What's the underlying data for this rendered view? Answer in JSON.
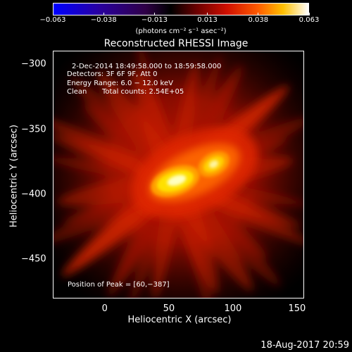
{
  "colorbar": {
    "tick_labels": [
      "−0.063",
      "−0.038",
      "−0.013",
      "0.013",
      "0.038",
      "0.063"
    ],
    "tick_values": [
      -0.063,
      -0.038,
      -0.013,
      0.013,
      0.038,
      0.063
    ],
    "range": [
      -0.063,
      0.063
    ],
    "unit_label": "(photons cm⁻² s⁻¹ asec⁻²)",
    "colormap": "rhessi-blue-black-red-yellow-white"
  },
  "chart_data": {
    "type": "heatmap",
    "title": "Reconstructed RHESSI Image",
    "xlabel": "Heliocentric X (arcsec)",
    "ylabel": "Heliocentric Y (arcsec)",
    "xlim": [
      -40,
      155
    ],
    "ylim": [
      -480,
      -290
    ],
    "x_ticks": [
      0,
      50,
      100,
      150
    ],
    "y_ticks": [
      -300,
      -350,
      -400,
      -450
    ],
    "x_tick_labels": [
      "0",
      "50",
      "100",
      "150"
    ],
    "y_tick_labels": [
      "−300",
      "−350",
      "−400",
      "−450"
    ],
    "sources": [
      {
        "x": 55,
        "y": -390,
        "peak": 0.063
      },
      {
        "x": 85,
        "y": -377,
        "peak": 0.05
      }
    ],
    "peak_position": [
      60,
      -387
    ],
    "annotations": {
      "time_range": "2-Dec-2014 18:49:58.000 to 18:59:58.000",
      "detectors": "Detectors: 3F 6F 9F, Att 0",
      "energy": "Energy Range: 6.0 − 12.0 keV",
      "algorithm": "Clean",
      "counts": "Total counts: 2.54E+05",
      "peak_text": "Position of Peak = [60,−387]"
    }
  },
  "footer": {
    "date": "18-Aug-2017 20:59"
  }
}
